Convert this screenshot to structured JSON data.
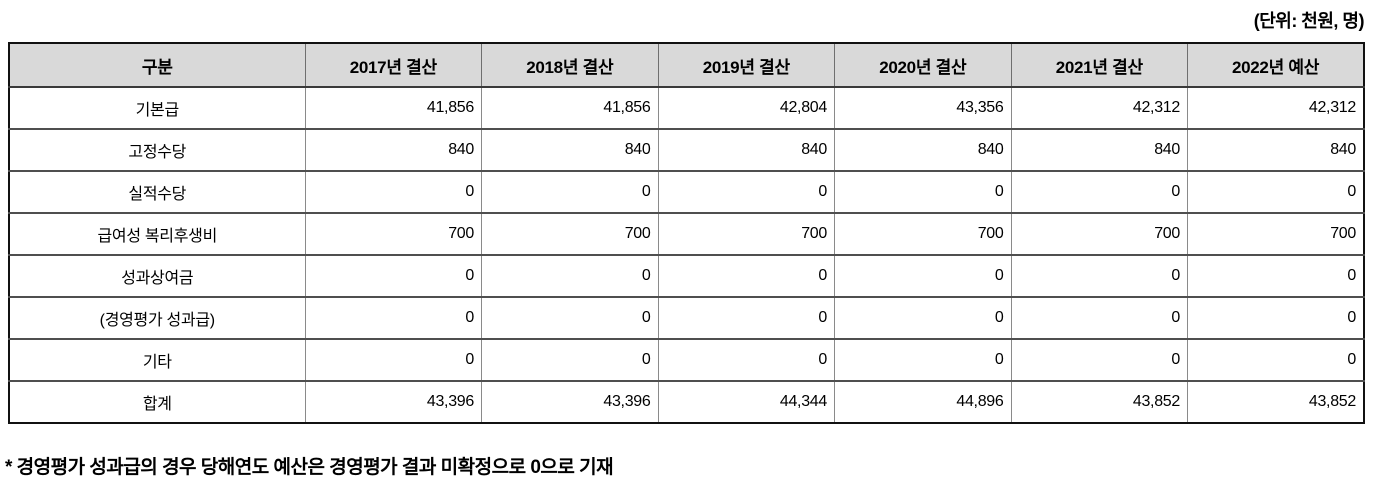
{
  "unit_label": "(단위: 천원, 명)",
  "table": {
    "headers": [
      "구분",
      "2017년 결산",
      "2018년 결산",
      "2019년 결산",
      "2020년 결산",
      "2021년 결산",
      "2022년 예산"
    ],
    "rows": [
      {
        "label": "기본급",
        "values": [
          "41,856",
          "41,856",
          "42,804",
          "43,356",
          "42,312",
          "42,312"
        ]
      },
      {
        "label": "고정수당",
        "values": [
          "840",
          "840",
          "840",
          "840",
          "840",
          "840"
        ]
      },
      {
        "label": "실적수당",
        "values": [
          "0",
          "0",
          "0",
          "0",
          "0",
          "0"
        ]
      },
      {
        "label": "급여성 복리후생비",
        "values": [
          "700",
          "700",
          "700",
          "700",
          "700",
          "700"
        ]
      },
      {
        "label": "성과상여금",
        "values": [
          "0",
          "0",
          "0",
          "0",
          "0",
          "0"
        ]
      },
      {
        "label": "(경영평가 성과급)",
        "values": [
          "0",
          "0",
          "0",
          "0",
          "0",
          "0"
        ]
      },
      {
        "label": "기타",
        "values": [
          "0",
          "0",
          "0",
          "0",
          "0",
          "0"
        ]
      },
      {
        "label": "합계",
        "values": [
          "43,396",
          "43,396",
          "44,344",
          "44,896",
          "43,852",
          "43,852"
        ]
      }
    ]
  },
  "footnote": "* 경영평가 성과급의 경우 당해연도 예산은 경영평가 결과 미확정으로 0으로 기재",
  "colors": {
    "header_bg": "#d9d9d9",
    "outer_border": "#111111",
    "row_border": "#4f4f4f",
    "column_border": "#8a8a8a",
    "text": "#000000"
  }
}
